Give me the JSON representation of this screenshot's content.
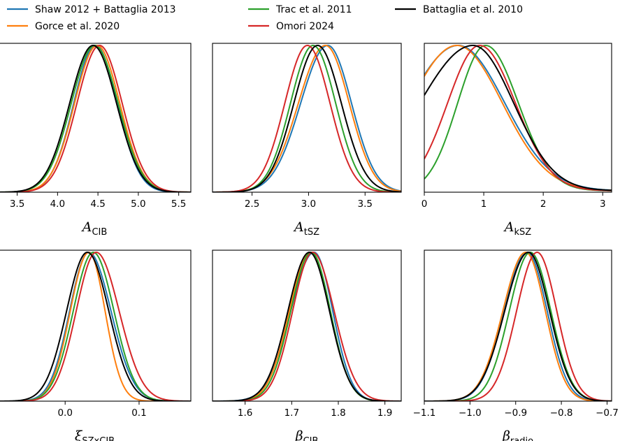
{
  "legend": {
    "entries": [
      {
        "name": "Shaw 2012 + Battaglia 2013",
        "color": "#1f77b4"
      },
      {
        "name": "Gorce et al. 2020",
        "color": "#ff7f0e"
      },
      {
        "name": "Trac et al. 2011",
        "color": "#2ca02c"
      },
      {
        "name": "Omori 2024",
        "color": "#d62728"
      },
      {
        "name": "Battaglia et al. 2010",
        "color": "#000000"
      }
    ]
  },
  "chart_data": [
    {
      "type": "line",
      "id": "A_CIB",
      "xlabel": "A",
      "xlabel_sub": "CIB",
      "xlim": [
        3.27,
        5.65
      ],
      "ticks": [
        3.5,
        4.0,
        4.5,
        5.0,
        5.5
      ],
      "tick_labels": [
        "3.5",
        "4.0",
        "4.5",
        "5.0",
        "5.5"
      ],
      "series": [
        {
          "name": "Shaw 2012 + Battaglia 2013",
          "type": "gauss",
          "mu": 4.47,
          "sigma": 0.27,
          "floor_left": 0,
          "floor_right": 0
        },
        {
          "name": "Gorce et al. 2020",
          "type": "gauss",
          "mu": 4.49,
          "sigma": 0.28,
          "floor_left": 0,
          "floor_right": 0
        },
        {
          "name": "Trac et al. 2011",
          "type": "gauss",
          "mu": 4.46,
          "sigma": 0.29,
          "floor_left": 0,
          "floor_right": 0
        },
        {
          "name": "Omori 2024",
          "type": "gauss",
          "mu": 4.52,
          "sigma": 0.28,
          "floor_left": 0,
          "floor_right": 0
        },
        {
          "name": "Battaglia et al. 2010",
          "type": "gauss",
          "mu": 4.44,
          "sigma": 0.29,
          "floor_left": 0,
          "floor_right": 0
        }
      ]
    },
    {
      "type": "line",
      "id": "A_tSZ",
      "xlabel": "A",
      "xlabel_sub": "tSZ",
      "xlim": [
        2.15,
        3.82
      ],
      "ticks": [
        2.5,
        3.0,
        3.5
      ],
      "tick_labels": [
        "2.5",
        "3.0",
        "3.5"
      ],
      "series": [
        {
          "name": "Shaw 2012 + Battaglia 2013",
          "type": "gauss",
          "mu": 3.17,
          "sigma": 0.21,
          "sigma_left": 0.24,
          "floor_left": 0,
          "floor_right": 0
        },
        {
          "name": "Gorce et al. 2020",
          "type": "gauss",
          "mu": 3.15,
          "sigma": 0.21,
          "sigma_left": 0.24,
          "floor_left": 0,
          "floor_right": 0
        },
        {
          "name": "Trac et al. 2011",
          "type": "gauss",
          "mu": 3.04,
          "sigma": 0.2,
          "floor_left": 0,
          "floor_right": 0
        },
        {
          "name": "Omori 2024",
          "type": "gauss",
          "mu": 2.99,
          "sigma": 0.2,
          "floor_left": 0,
          "floor_right": 0
        },
        {
          "name": "Battaglia et al. 2010",
          "type": "gauss",
          "mu": 3.08,
          "sigma": 0.21,
          "floor_left": 0,
          "floor_right": 0
        }
      ]
    },
    {
      "type": "line",
      "id": "A_kSZ",
      "xlabel": "A",
      "xlabel_sub": "kSZ",
      "xlim": [
        0,
        3.15
      ],
      "ticks": [
        0,
        1,
        2,
        3
      ],
      "tick_labels": [
        "0",
        "1",
        "2",
        "3"
      ],
      "series": [
        {
          "name": "Shaw 2012 + Battaglia 2013",
          "type": "gauss",
          "mu": 0.57,
          "sigma": 0.78,
          "sigma_left": 0.85,
          "floor_left": 0,
          "floor_right": 0.01
        },
        {
          "name": "Gorce et al. 2020",
          "type": "gauss",
          "mu": 0.55,
          "sigma": 0.76,
          "sigma_left": 0.8,
          "floor_left": 0,
          "floor_right": 0.01
        },
        {
          "name": "Trac et al. 2011",
          "type": "gauss",
          "mu": 1.03,
          "sigma": 0.55,
          "sigma_left": 0.47,
          "floor_left": 0,
          "floor_right": 0.01
        },
        {
          "name": "Omori 2024",
          "type": "gauss",
          "mu": 0.93,
          "sigma": 0.6,
          "sigma_left": 0.54,
          "floor_left": 0,
          "floor_right": 0.01
        },
        {
          "name": "Battaglia et al. 2010",
          "type": "gauss",
          "mu": 0.82,
          "sigma": 0.68,
          "sigma_left": 0.9,
          "floor_left": 0,
          "floor_right": 0.01
        }
      ]
    },
    {
      "type": "line",
      "id": "xi_SZxCIB",
      "xlabel": "ξ",
      "xlabel_sub": "SZxCIB",
      "xlim": [
        -0.09,
        0.17
      ],
      "ticks": [
        0.0,
        0.1
      ],
      "tick_labels": [
        "0.0",
        "0.1"
      ],
      "series": [
        {
          "name": "Shaw 2012 + Battaglia 2013",
          "type": "gauss",
          "mu": 0.032,
          "sigma": 0.03,
          "sigma_left": 0.026,
          "floor_left": 0,
          "floor_right": 0
        },
        {
          "name": "Gorce et al. 2020",
          "type": "gauss",
          "mu": 0.032,
          "sigma": 0.022,
          "sigma_left": 0.025,
          "floor_left": 0,
          "floor_right": 0
        },
        {
          "name": "Trac et al. 2011",
          "type": "gauss",
          "mu": 0.038,
          "sigma": 0.028,
          "sigma_left": 0.027,
          "floor_left": 0,
          "floor_right": 0
        },
        {
          "name": "Omori 2024",
          "type": "gauss",
          "mu": 0.042,
          "sigma": 0.031,
          "sigma_left": 0.027,
          "floor_left": 0,
          "floor_right": 0
        },
        {
          "name": "Battaglia et al. 2010",
          "type": "gauss",
          "mu": 0.03,
          "sigma": 0.029,
          "sigma_left": 0.028,
          "floor_left": 0,
          "floor_right": 0
        }
      ]
    },
    {
      "type": "line",
      "id": "beta_CIB",
      "xlabel": "β",
      "xlabel_sub": "CIB",
      "xlim": [
        1.53,
        1.935
      ],
      "ticks": [
        1.6,
        1.7,
        1.8,
        1.9
      ],
      "tick_labels": [
        "1.6",
        "1.7",
        "1.8",
        "1.9"
      ],
      "series": [
        {
          "name": "Shaw 2012 + Battaglia 2013",
          "type": "gauss",
          "mu": 1.748,
          "sigma": 0.04,
          "sigma_left": 0.05,
          "floor_left": 0,
          "floor_right": 0
        },
        {
          "name": "Gorce et al. 2020",
          "type": "gauss",
          "mu": 1.74,
          "sigma": 0.042,
          "sigma_left": 0.045,
          "floor_left": 0,
          "floor_right": 0
        },
        {
          "name": "Trac et al. 2011",
          "type": "gauss",
          "mu": 1.742,
          "sigma": 0.041,
          "sigma_left": 0.044,
          "floor_left": 0,
          "floor_right": 0
        },
        {
          "name": "Omori 2024",
          "type": "gauss",
          "mu": 1.745,
          "sigma": 0.046,
          "sigma_left": 0.043,
          "floor_left": 0,
          "floor_right": 0
        },
        {
          "name": "Battaglia et al. 2010",
          "type": "gauss",
          "mu": 1.738,
          "sigma": 0.043,
          "sigma_left": 0.046,
          "floor_left": 0,
          "floor_right": 0
        }
      ]
    },
    {
      "type": "line",
      "id": "beta_radio",
      "xlabel": "β",
      "xlabel_sub": "radio",
      "xlim": [
        -1.1,
        -0.69
      ],
      "ticks": [
        -1.1,
        -1.0,
        -0.9,
        -0.8,
        -0.7
      ],
      "tick_labels": [
        "−1.1",
        "−1.0",
        "−0.9",
        "−0.8",
        "−0.7"
      ],
      "series": [
        {
          "name": "Shaw 2012 + Battaglia 2013",
          "type": "gauss",
          "mu": -0.875,
          "sigma": 0.044,
          "sigma_left": 0.05,
          "floor_left": 0,
          "floor_right": 0
        },
        {
          "name": "Gorce et al. 2020",
          "type": "gauss",
          "mu": -0.878,
          "sigma": 0.043,
          "sigma_left": 0.05,
          "floor_left": 0,
          "floor_right": 0
        },
        {
          "name": "Trac et al. 2011",
          "type": "gauss",
          "mu": -0.868,
          "sigma": 0.045,
          "sigma_left": 0.046,
          "floor_left": 0,
          "floor_right": 0
        },
        {
          "name": "Omori 2024",
          "type": "gauss",
          "mu": -0.853,
          "sigma": 0.043,
          "sigma_left": 0.045,
          "floor_left": 0,
          "floor_right": 0
        },
        {
          "name": "Battaglia et al. 2010",
          "type": "gauss",
          "mu": -0.872,
          "sigma": 0.046,
          "sigma_left": 0.052,
          "floor_left": 0,
          "floor_right": 0
        }
      ]
    }
  ]
}
